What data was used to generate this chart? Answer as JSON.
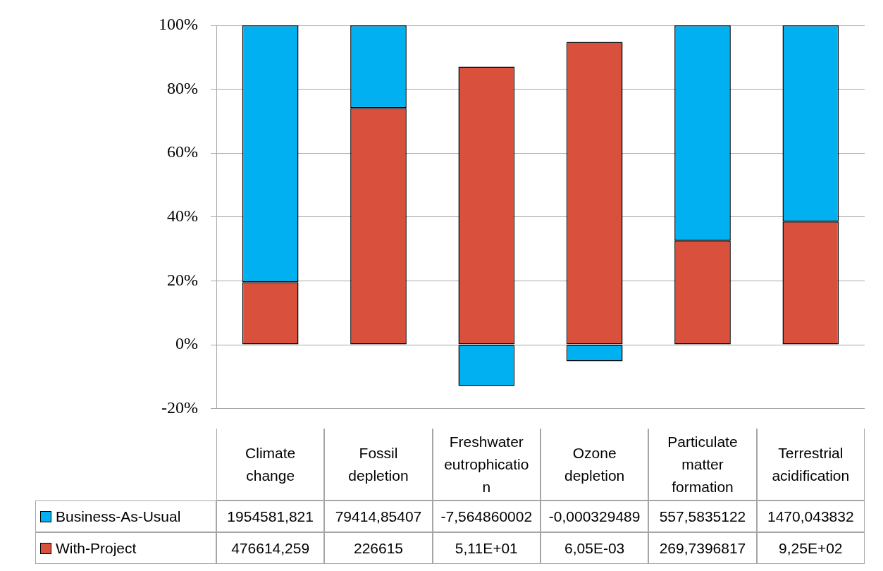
{
  "chart_data": {
    "type": "bar",
    "stacked": true,
    "categories": [
      "Climate change",
      "Fossil depletion",
      "Freshwater eutrophication",
      "Ozone depletion",
      "Particulate matter formation",
      "Terrestrial acidification"
    ],
    "series": [
      {
        "name": "With-Project",
        "color": "#d9513c",
        "values": [
          19.6,
          74.1,
          87.1,
          94.8,
          32.6,
          38.6
        ]
      },
      {
        "name": "Business-As-Usual",
        "color": "#00b0f0",
        "values": [
          80.4,
          25.9,
          -12.9,
          -5.2,
          67.4,
          61.4
        ]
      }
    ],
    "annotations": [
      "476614,259",
      "226615",
      "5,11E+01",
      "6,05E-03",
      "269,7396817",
      "9,25E+02",
      "1954581,821",
      "79414,85407",
      "-7,564860002",
      "-0,000329489",
      "557,5835122",
      "1470,043832"
    ],
    "ylim": [
      -20,
      100
    ],
    "yticks": [
      {
        "value": -20,
        "label": "-20%"
      },
      {
        "value": 0,
        "label": "0%"
      },
      {
        "value": 20,
        "label": "20%"
      },
      {
        "value": 40,
        "label": "40%"
      },
      {
        "value": 60,
        "label": "60%"
      },
      {
        "value": 80,
        "label": "80%"
      },
      {
        "value": 100,
        "label": "100%"
      }
    ],
    "grid": "y",
    "legend": "bottom"
  }
}
